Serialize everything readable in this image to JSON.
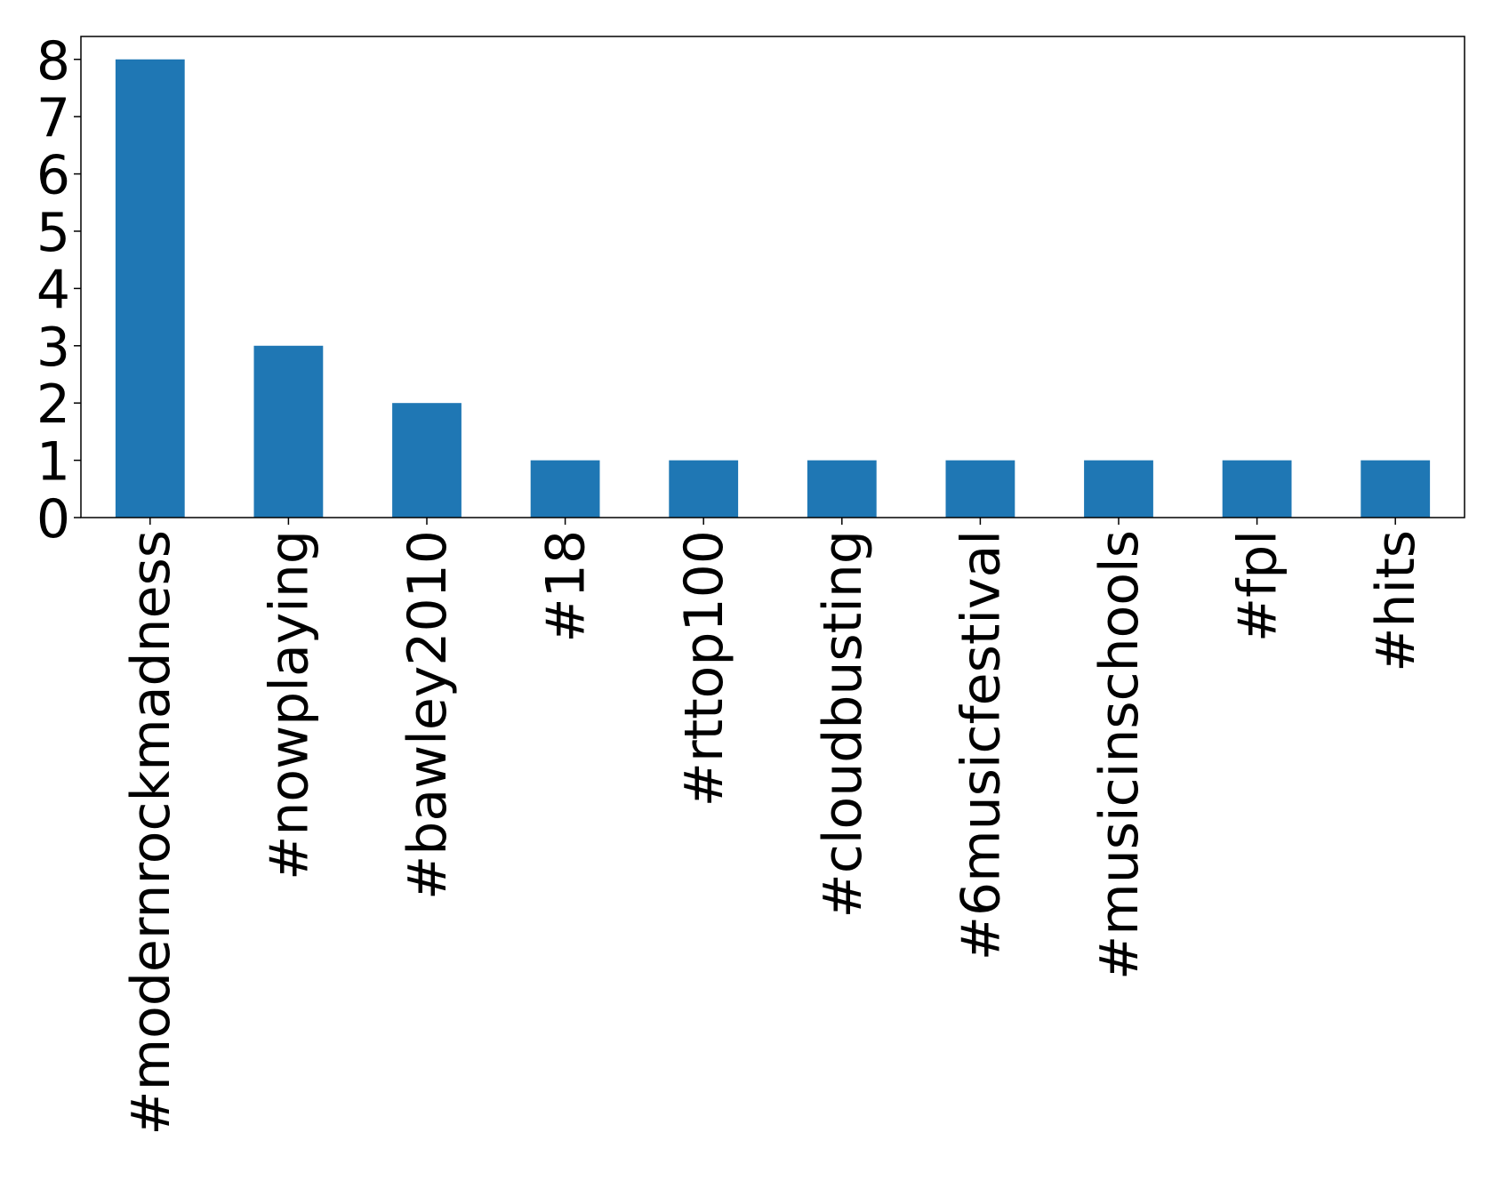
{
  "chart_data": {
    "type": "bar",
    "categories": [
      "#modernrockmadness",
      "#nowplaying",
      "#bawley2010",
      "#18",
      "#rttop100",
      "#cloudbusting",
      "#6musicfestival",
      "#musicinschools",
      "#fpl",
      "#hits"
    ],
    "values": [
      8,
      3,
      2,
      1,
      1,
      1,
      1,
      1,
      1,
      1
    ],
    "color": "#1f77b4",
    "ylim": [
      0,
      8.4
    ],
    "yticks": [
      0,
      1,
      2,
      3,
      4,
      5,
      6,
      7,
      8
    ],
    "grid": false
  }
}
